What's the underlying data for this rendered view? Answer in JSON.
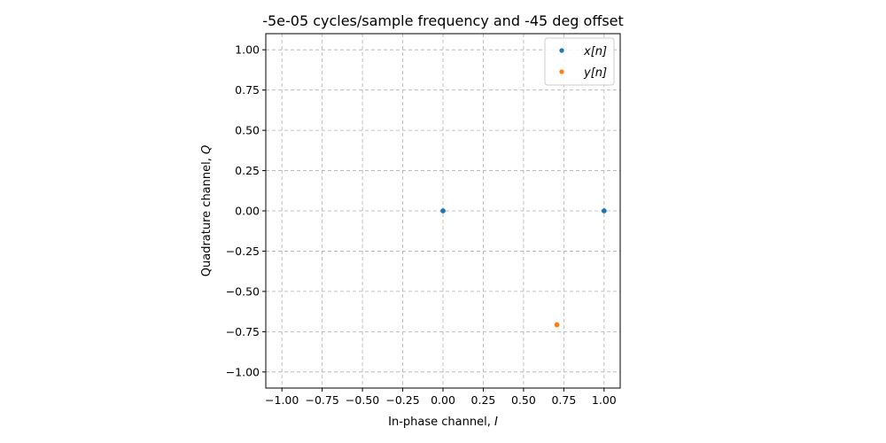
{
  "chart_data": {
    "type": "scatter",
    "title": "-5e-05 cycles/sample frequency and -45 deg offset",
    "xlabel": "In-phase channel, ",
    "xlabel_symbol": "I",
    "ylabel": "Quadrature channel, ",
    "ylabel_symbol": "Q",
    "xlim": [
      -1.1,
      1.1
    ],
    "ylim": [
      -1.1,
      1.1
    ],
    "x_ticks": [
      -1.0,
      -0.75,
      -0.5,
      -0.25,
      0.0,
      0.25,
      0.5,
      0.75,
      1.0
    ],
    "y_ticks": [
      -1.0,
      -0.75,
      -0.5,
      -0.25,
      0.0,
      0.25,
      0.5,
      0.75,
      1.0
    ],
    "x_tick_labels": [
      "−1.00",
      "−0.75",
      "−0.50",
      "−0.25",
      "0.00",
      "0.25",
      "0.50",
      "0.75",
      "1.00"
    ],
    "y_tick_labels": [
      "−1.00",
      "−0.75",
      "−0.50",
      "−0.25",
      "0.00",
      "0.25",
      "0.50",
      "0.75",
      "1.00"
    ],
    "grid": true,
    "legend_position": "top-right",
    "series": [
      {
        "name": "x[n]",
        "color": "#1f77b4",
        "points": [
          [
            0.0,
            0.0
          ],
          [
            1.0,
            0.0
          ]
        ]
      },
      {
        "name": "y[n]",
        "color": "#ff7f0e",
        "points": [
          [
            0.707,
            -0.707
          ]
        ]
      }
    ]
  }
}
